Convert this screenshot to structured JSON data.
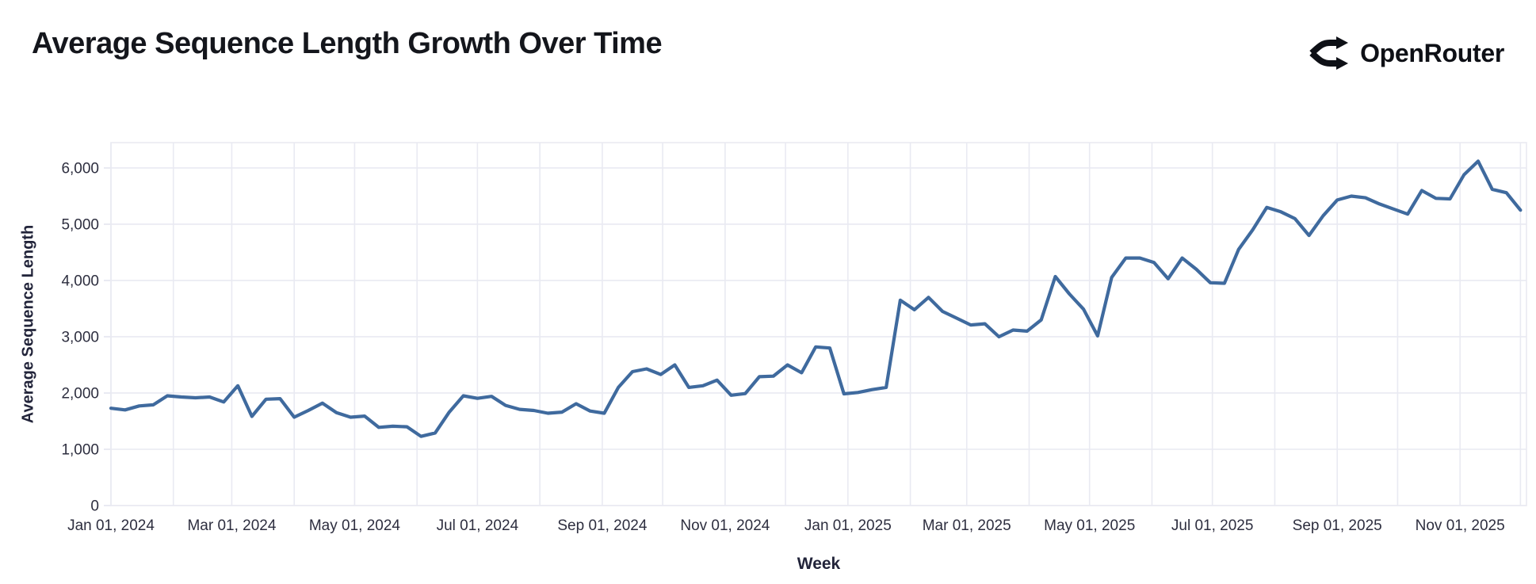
{
  "header": {
    "title": "Average Sequence Length Growth Over Time",
    "brand": "OpenRouter"
  },
  "chart_data": {
    "type": "line",
    "title": "Average Sequence Length Growth Over Time",
    "xlabel": "Week",
    "ylabel": "Average Sequence Length",
    "legend": "none",
    "grid": true,
    "x_cadence": "weekly",
    "x_start": "Jan 01, 2024",
    "x_domain_days": [
      0,
      703
    ],
    "ylim": [
      0,
      6450
    ],
    "y_ticks": [
      {
        "value": 0,
        "label": "0"
      },
      {
        "value": 1000,
        "label": "1,000"
      },
      {
        "value": 2000,
        "label": "2,000"
      },
      {
        "value": 3000,
        "label": "3,000"
      },
      {
        "value": 4000,
        "label": "4,000"
      },
      {
        "value": 5000,
        "label": "5,000"
      },
      {
        "value": 6000,
        "label": "6,000"
      }
    ],
    "x_ticks": [
      {
        "day": 0,
        "label": "Jan 01, 2024"
      },
      {
        "day": 60,
        "label": "Mar 01, 2024"
      },
      {
        "day": 121,
        "label": "May 01, 2024"
      },
      {
        "day": 182,
        "label": "Jul 01, 2024"
      },
      {
        "day": 244,
        "label": "Sep 01, 2024"
      },
      {
        "day": 305,
        "label": "Nov 01, 2024"
      },
      {
        "day": 366,
        "label": "Jan 01, 2025"
      },
      {
        "day": 425,
        "label": "Mar 01, 2025"
      },
      {
        "day": 486,
        "label": "May 01, 2025"
      },
      {
        "day": 547,
        "label": "Jul 01, 2025"
      },
      {
        "day": 609,
        "label": "Sep 01, 2025"
      },
      {
        "day": 670,
        "label": "Nov 01, 2025"
      }
    ],
    "month_gridline_days": [
      0,
      31,
      60,
      91,
      121,
      152,
      182,
      213,
      244,
      274,
      305,
      335,
      366,
      397,
      425,
      456,
      486,
      517,
      547,
      578,
      609,
      639,
      670,
      700
    ],
    "series": [
      {
        "name": "Average Sequence Length",
        "point_interval_days": 7,
        "values": [
          1730,
          1700,
          1770,
          1790,
          1950,
          1930,
          1915,
          1930,
          1840,
          2130,
          1585,
          1890,
          1900,
          1570,
          1690,
          1820,
          1650,
          1570,
          1590,
          1390,
          1410,
          1400,
          1230,
          1290,
          1660,
          1950,
          1905,
          1940,
          1780,
          1710,
          1690,
          1640,
          1660,
          1810,
          1680,
          1640,
          2100,
          2380,
          2430,
          2330,
          2500,
          2100,
          2130,
          2230,
          1960,
          1990,
          2290,
          2300,
          2500,
          2360,
          2820,
          2800,
          1985,
          2010,
          2060,
          2100,
          3650,
          3480,
          3700,
          3450,
          3330,
          3210,
          3230,
          3000,
          3120,
          3100,
          3300,
          4070,
          3760,
          3490,
          3015,
          4055,
          4400,
          4400,
          4320,
          4030,
          4400,
          4200,
          3960,
          3950,
          4550,
          4900,
          5300,
          5220,
          5100,
          4800,
          5150,
          5430,
          5500,
          5470,
          5360,
          5270,
          5180,
          5600,
          5460,
          5450,
          5880,
          6120,
          5620,
          5560,
          5250
        ]
      }
    ],
    "colors": {
      "line": "#3f6a9e",
      "grid": "#e9eaf2",
      "tick_label": "#2d2e3f",
      "axis_title": "#22243a",
      "title": "#14161c"
    }
  }
}
